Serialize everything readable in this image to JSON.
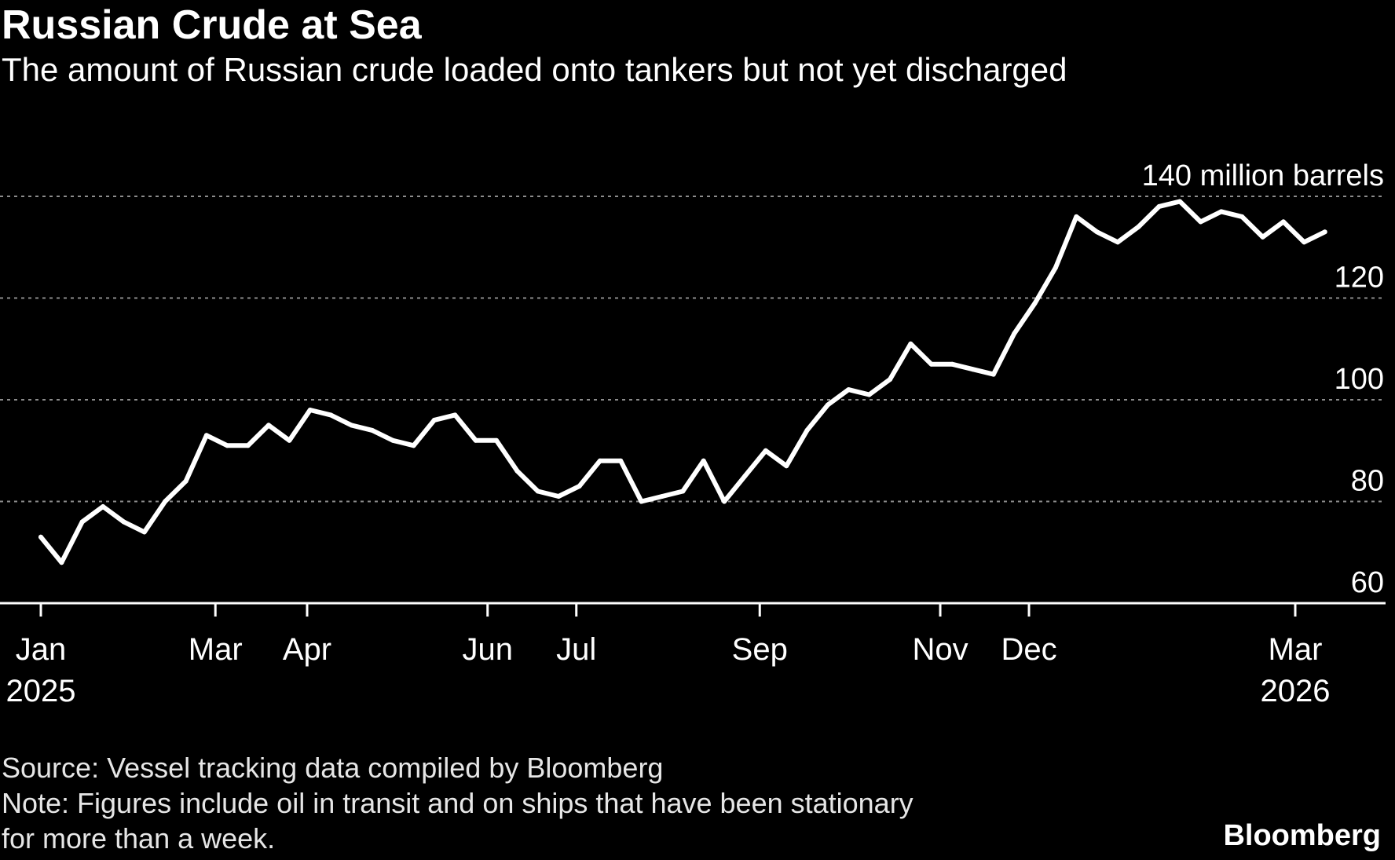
{
  "header": {
    "title": "Russian Crude at Sea",
    "subtitle": "The amount of Russian crude loaded onto tankers but not yet discharged"
  },
  "footer": {
    "source": "Source: Vessel tracking data compiled by Bloomberg",
    "note_line1": "Note: Figures include oil in transit and on ships that have been stationary",
    "note_line2": "for more than a week.",
    "brand": "Bloomberg"
  },
  "colors": {
    "background": "#000000",
    "line": "#ffffff",
    "grid": "#8c8c8c",
    "text": "#ffffff"
  },
  "chart_data": {
    "type": "line",
    "title": "Russian Crude at Sea",
    "subtitle": "The amount of Russian crude loaded onto tankers but not yet discharged",
    "unit_label": "140 million barrels",
    "ylim": [
      60,
      140
    ],
    "y_ticks": [
      {
        "value": 60,
        "label": "60"
      },
      {
        "value": 80,
        "label": "80"
      },
      {
        "value": 100,
        "label": "100"
      },
      {
        "value": 120,
        "label": "120"
      },
      {
        "value": 140,
        "label": "140 million barrels"
      }
    ],
    "grid": "dotted horizontal",
    "y_axis_side": "right",
    "xlim": [
      "2025-01-01",
      "2026-03-31"
    ],
    "x_ticks": [
      {
        "date": "2025-01-01",
        "label": "Jan",
        "year": "2025"
      },
      {
        "date": "2025-03-01",
        "label": "Mar",
        "year": ""
      },
      {
        "date": "2025-04-01",
        "label": "Apr",
        "year": ""
      },
      {
        "date": "2025-06-01",
        "label": "Jun",
        "year": ""
      },
      {
        "date": "2025-07-01",
        "label": "Jul",
        "year": ""
      },
      {
        "date": "2025-09-01",
        "label": "Sep",
        "year": ""
      },
      {
        "date": "2025-11-01",
        "label": "Nov",
        "year": ""
      },
      {
        "date": "2025-12-01",
        "label": "Dec",
        "year": ""
      },
      {
        "date": "2026-03-01",
        "label": "Mar",
        "year": "2026"
      }
    ],
    "series": [
      {
        "points": [
          [
            "2025-01-01",
            73
          ],
          [
            "2025-01-08",
            68
          ],
          [
            "2025-01-15",
            76
          ],
          [
            "2025-01-22",
            79
          ],
          [
            "2025-01-29",
            76
          ],
          [
            "2025-02-05",
            74
          ],
          [
            "2025-02-12",
            80
          ],
          [
            "2025-02-19",
            84
          ],
          [
            "2025-02-26",
            93
          ],
          [
            "2025-03-05",
            91
          ],
          [
            "2025-03-12",
            91
          ],
          [
            "2025-03-19",
            95
          ],
          [
            "2025-03-26",
            92
          ],
          [
            "2025-04-02",
            98
          ],
          [
            "2025-04-09",
            97
          ],
          [
            "2025-04-16",
            95
          ],
          [
            "2025-04-23",
            94
          ],
          [
            "2025-04-30",
            92
          ],
          [
            "2025-05-07",
            91
          ],
          [
            "2025-05-14",
            96
          ],
          [
            "2025-05-21",
            97
          ],
          [
            "2025-05-28",
            92
          ],
          [
            "2025-06-04",
            92
          ],
          [
            "2025-06-11",
            86
          ],
          [
            "2025-06-18",
            82
          ],
          [
            "2025-06-25",
            81
          ],
          [
            "2025-07-02",
            83
          ],
          [
            "2025-07-09",
            88
          ],
          [
            "2025-07-16",
            88
          ],
          [
            "2025-07-23",
            80
          ],
          [
            "2025-07-30",
            81
          ],
          [
            "2025-08-06",
            82
          ],
          [
            "2025-08-13",
            88
          ],
          [
            "2025-08-20",
            80
          ],
          [
            "2025-08-27",
            85
          ],
          [
            "2025-09-03",
            90
          ],
          [
            "2025-09-10",
            87
          ],
          [
            "2025-09-17",
            94
          ],
          [
            "2025-09-24",
            99
          ],
          [
            "2025-10-01",
            102
          ],
          [
            "2025-10-08",
            101
          ],
          [
            "2025-10-15",
            104
          ],
          [
            "2025-10-22",
            111
          ],
          [
            "2025-10-29",
            107
          ],
          [
            "2025-11-05",
            107
          ],
          [
            "2025-11-12",
            106
          ],
          [
            "2025-11-19",
            105
          ],
          [
            "2025-11-26",
            113
          ],
          [
            "2025-12-03",
            119
          ],
          [
            "2025-12-10",
            126
          ],
          [
            "2025-12-17",
            136
          ],
          [
            "2025-12-24",
            133
          ],
          [
            "2025-12-31",
            131
          ],
          [
            "2026-01-07",
            134
          ],
          [
            "2026-01-14",
            138
          ],
          [
            "2026-01-21",
            139
          ],
          [
            "2026-01-28",
            135
          ],
          [
            "2026-02-04",
            137
          ],
          [
            "2026-02-11",
            136
          ],
          [
            "2026-02-18",
            132
          ],
          [
            "2026-02-25",
            135
          ],
          [
            "2026-03-04",
            131
          ],
          [
            "2026-03-11",
            133
          ]
        ]
      }
    ]
  }
}
